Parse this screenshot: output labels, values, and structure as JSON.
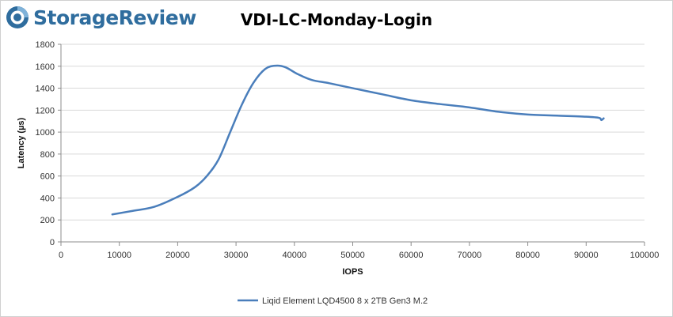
{
  "brand": {
    "name": "StorageReview",
    "logo_icon": "storagereview-logo-icon",
    "color": "#2f6d9e"
  },
  "chart_data": {
    "type": "line",
    "title": "VDI-LC-Monday-Login",
    "xlabel": "IOPS",
    "ylabel": "Latency (µs)",
    "xlim": [
      0,
      100000
    ],
    "ylim": [
      0,
      1800
    ],
    "x_ticks": [
      0,
      10000,
      20000,
      30000,
      40000,
      50000,
      60000,
      70000,
      80000,
      90000,
      100000
    ],
    "y_ticks": [
      0,
      200,
      400,
      600,
      800,
      1000,
      1200,
      1400,
      1600,
      1800
    ],
    "grid": true,
    "legend_position": "bottom",
    "series": [
      {
        "name": "Liqid Element LQD4500 8 x 2TB Gen3 M.2",
        "color": "#4a7ebb",
        "points": [
          [
            8800,
            250
          ],
          [
            12000,
            280
          ],
          [
            16000,
            320
          ],
          [
            20000,
            410
          ],
          [
            23000,
            500
          ],
          [
            25000,
            600
          ],
          [
            27000,
            750
          ],
          [
            29000,
            1000
          ],
          [
            31000,
            1250
          ],
          [
            33000,
            1450
          ],
          [
            35000,
            1575
          ],
          [
            36800,
            1605
          ],
          [
            38500,
            1590
          ],
          [
            40500,
            1530
          ],
          [
            43000,
            1475
          ],
          [
            46000,
            1445
          ],
          [
            50000,
            1400
          ],
          [
            55000,
            1345
          ],
          [
            60000,
            1290
          ],
          [
            65000,
            1255
          ],
          [
            70000,
            1225
          ],
          [
            75000,
            1185
          ],
          [
            80000,
            1160
          ],
          [
            85000,
            1150
          ],
          [
            90000,
            1140
          ],
          [
            92200,
            1130
          ],
          [
            92600,
            1110
          ],
          [
            93000,
            1125
          ]
        ]
      }
    ]
  }
}
